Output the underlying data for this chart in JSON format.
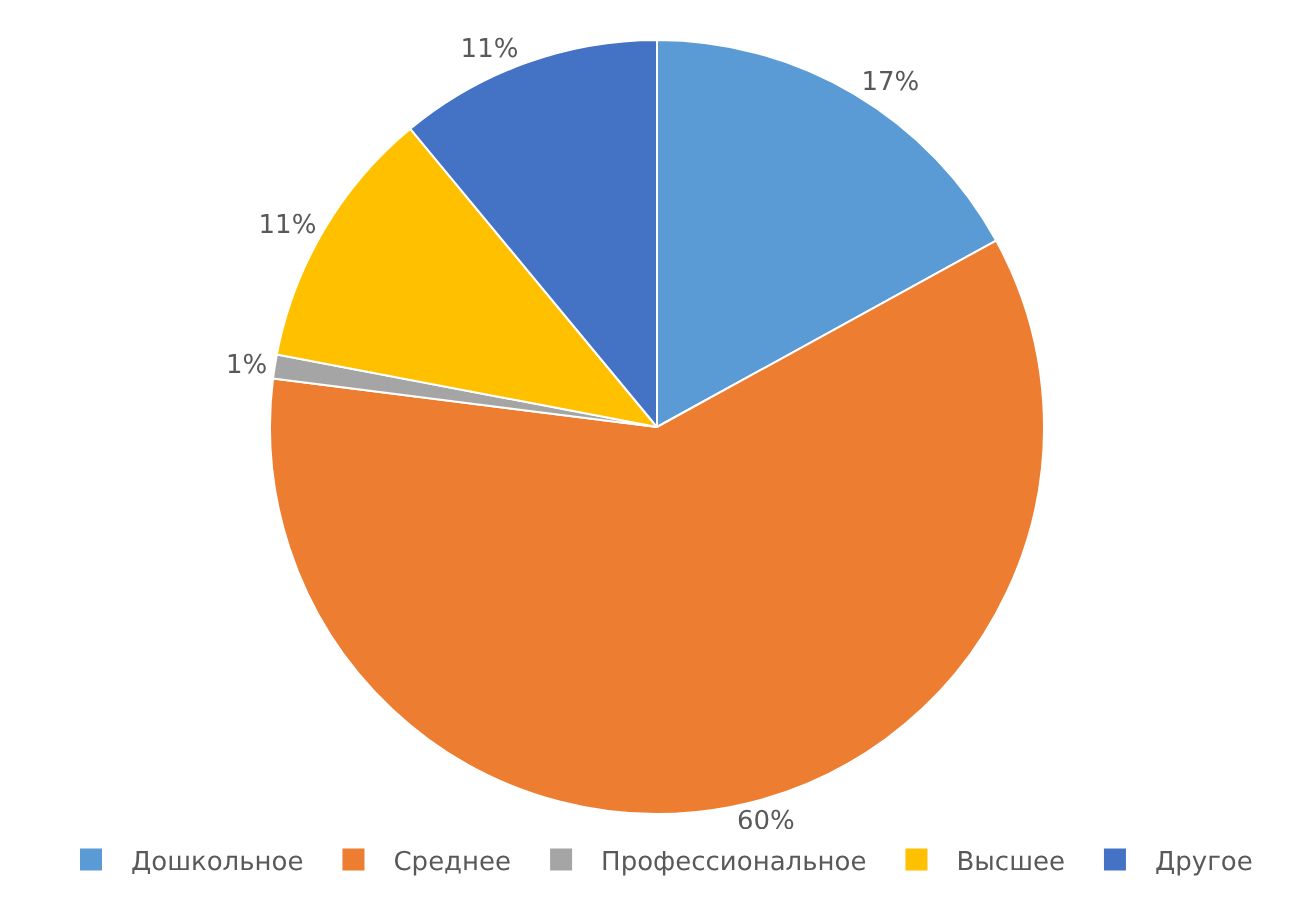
{
  "chart_data": {
    "type": "pie",
    "categories": [
      "Дошкольное",
      "Среднее",
      "Профессиональное",
      "Высшее",
      "Другое"
    ],
    "values": [
      17,
      60,
      1,
      11,
      11
    ],
    "value_labels": [
      "17%",
      "60%",
      "1%",
      "11%",
      "11%"
    ],
    "colors": [
      "#5b9bd5",
      "#ed7d31",
      "#a5a5a5",
      "#ffc000",
      "#4472c4"
    ],
    "legend": "bottom"
  }
}
